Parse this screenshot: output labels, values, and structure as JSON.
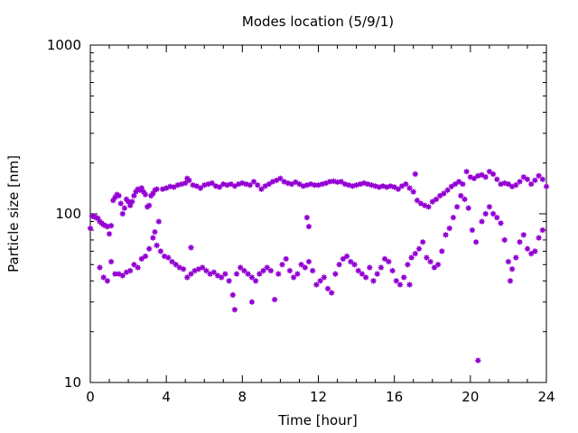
{
  "chart_data": {
    "type": "scatter",
    "title": "Modes location (5/9/1)",
    "xlabel": "Time [hour]",
    "ylabel": "Particle size [nm]",
    "xlim": [
      0,
      24
    ],
    "ylim": [
      10,
      1000
    ],
    "yscale": "log",
    "xticks": [
      "0",
      "4",
      "8",
      "12",
      "16",
      "20",
      "24"
    ],
    "yticks": [
      "10",
      "100",
      "1000"
    ],
    "grid": false,
    "marker_color": "#9400d3",
    "series": [
      {
        "points": [
          [
            0.0,
            82
          ],
          [
            0.1,
            97
          ],
          [
            0.2,
            96
          ],
          [
            0.3,
            95
          ],
          [
            0.4,
            94
          ],
          [
            0.5,
            90
          ],
          [
            0.6,
            88
          ],
          [
            0.7,
            86
          ],
          [
            0.8,
            85
          ],
          [
            0.9,
            84
          ],
          [
            1.0,
            76
          ],
          [
            1.1,
            85
          ],
          [
            1.2,
            120
          ],
          [
            1.3,
            125
          ],
          [
            1.4,
            130
          ],
          [
            1.5,
            128
          ],
          [
            1.6,
            115
          ],
          [
            1.7,
            100
          ],
          [
            1.8,
            108
          ],
          [
            1.9,
            122
          ],
          [
            2.0,
            118
          ],
          [
            2.1,
            112
          ],
          [
            2.2,
            118
          ],
          [
            2.3,
            128
          ],
          [
            2.4,
            135
          ],
          [
            2.5,
            140
          ],
          [
            2.6,
            138
          ],
          [
            2.7,
            142
          ],
          [
            2.8,
            135
          ],
          [
            2.9,
            130
          ],
          [
            3.0,
            110
          ],
          [
            3.1,
            112
          ],
          [
            3.2,
            128
          ],
          [
            3.3,
            132
          ],
          [
            3.4,
            138
          ],
          [
            3.5,
            140
          ],
          [
            3.6,
            90
          ],
          [
            3.8,
            140
          ],
          [
            4.0,
            142
          ],
          [
            4.2,
            145
          ],
          [
            4.4,
            144
          ],
          [
            4.6,
            148
          ],
          [
            4.8,
            150
          ],
          [
            5.0,
            152
          ],
          [
            5.1,
            162
          ],
          [
            5.2,
            158
          ],
          [
            5.4,
            148
          ],
          [
            5.6,
            146
          ],
          [
            5.8,
            142
          ],
          [
            6.0,
            148
          ],
          [
            6.2,
            150
          ],
          [
            6.4,
            152
          ],
          [
            6.6,
            146
          ],
          [
            6.8,
            144
          ],
          [
            7.0,
            150
          ],
          [
            7.2,
            148
          ],
          [
            7.4,
            150
          ],
          [
            7.6,
            146
          ],
          [
            7.8,
            150
          ],
          [
            8.0,
            152
          ],
          [
            8.2,
            150
          ],
          [
            8.4,
            148
          ],
          [
            8.6,
            155
          ],
          [
            8.8,
            148
          ],
          [
            9.0,
            140
          ],
          [
            9.2,
            146
          ],
          [
            9.4,
            150
          ],
          [
            9.6,
            155
          ],
          [
            9.8,
            158
          ],
          [
            10.0,
            162
          ],
          [
            10.2,
            155
          ],
          [
            10.4,
            152
          ],
          [
            10.6,
            150
          ],
          [
            10.8,
            154
          ],
          [
            11.0,
            150
          ],
          [
            11.2,
            146
          ],
          [
            11.4,
            148
          ],
          [
            11.6,
            150
          ],
          [
            11.8,
            148
          ],
          [
            12.0,
            148
          ],
          [
            12.2,
            150
          ],
          [
            12.4,
            152
          ],
          [
            12.6,
            155
          ],
          [
            12.8,
            156
          ],
          [
            13.0,
            154
          ],
          [
            13.2,
            155
          ],
          [
            13.4,
            150
          ],
          [
            13.6,
            148
          ],
          [
            13.8,
            146
          ],
          [
            14.0,
            148
          ],
          [
            14.2,
            150
          ],
          [
            14.4,
            152
          ],
          [
            14.6,
            150
          ],
          [
            14.8,
            148
          ],
          [
            15.0,
            146
          ],
          [
            15.2,
            144
          ],
          [
            15.4,
            146
          ],
          [
            15.6,
            144
          ],
          [
            15.8,
            146
          ],
          [
            16.0,
            144
          ],
          [
            16.2,
            140
          ],
          [
            16.4,
            146
          ],
          [
            16.6,
            150
          ],
          [
            16.8,
            142
          ],
          [
            17.0,
            135
          ],
          [
            17.1,
            172
          ],
          [
            17.2,
            120
          ],
          [
            17.4,
            115
          ],
          [
            17.6,
            112
          ],
          [
            17.8,
            110
          ],
          [
            18.0,
            118
          ],
          [
            18.2,
            122
          ],
          [
            18.4,
            128
          ],
          [
            18.6,
            132
          ],
          [
            18.8,
            138
          ],
          [
            19.0,
            145
          ],
          [
            19.2,
            150
          ],
          [
            19.4,
            155
          ],
          [
            19.6,
            150
          ],
          [
            19.8,
            178
          ],
          [
            20.0,
            165
          ],
          [
            20.2,
            162
          ],
          [
            20.4,
            168
          ],
          [
            20.6,
            170
          ],
          [
            20.8,
            165
          ],
          [
            21.0,
            178
          ],
          [
            21.2,
            172
          ],
          [
            21.4,
            160
          ],
          [
            21.6,
            150
          ],
          [
            21.8,
            152
          ],
          [
            22.0,
            150
          ],
          [
            22.2,
            145
          ],
          [
            22.4,
            148
          ],
          [
            22.6,
            155
          ],
          [
            22.8,
            165
          ],
          [
            23.0,
            160
          ],
          [
            23.2,
            150
          ],
          [
            23.4,
            158
          ],
          [
            23.6,
            168
          ],
          [
            23.8,
            160
          ],
          [
            24.0,
            145
          ],
          [
            0.5,
            48
          ],
          [
            0.7,
            42
          ],
          [
            0.9,
            40
          ],
          [
            1.1,
            52
          ],
          [
            1.3,
            44
          ],
          [
            1.5,
            44
          ],
          [
            1.7,
            43
          ],
          [
            1.9,
            45
          ],
          [
            2.1,
            46
          ],
          [
            2.3,
            50
          ],
          [
            2.5,
            48
          ],
          [
            2.7,
            54
          ],
          [
            2.9,
            56
          ],
          [
            3.1,
            62
          ],
          [
            3.3,
            72
          ],
          [
            3.5,
            65
          ],
          [
            3.7,
            60
          ],
          [
            3.9,
            56
          ],
          [
            4.1,
            55
          ],
          [
            4.3,
            52
          ],
          [
            4.5,
            50
          ],
          [
            4.7,
            48
          ],
          [
            4.9,
            47
          ],
          [
            5.1,
            42
          ],
          [
            5.3,
            44
          ],
          [
            5.5,
            46
          ],
          [
            5.7,
            47
          ],
          [
            5.9,
            48
          ],
          [
            6.1,
            46
          ],
          [
            6.3,
            44
          ],
          [
            6.5,
            45
          ],
          [
            6.7,
            43
          ],
          [
            6.9,
            42
          ],
          [
            7.1,
            44
          ],
          [
            7.3,
            40
          ],
          [
            7.5,
            33
          ],
          [
            7.6,
            27
          ],
          [
            7.7,
            44
          ],
          [
            7.9,
            48
          ],
          [
            8.1,
            46
          ],
          [
            8.3,
            44
          ],
          [
            8.5,
            42
          ],
          [
            8.7,
            40
          ],
          [
            8.9,
            44
          ],
          [
            9.1,
            46
          ],
          [
            9.3,
            48
          ],
          [
            9.5,
            46
          ],
          [
            9.7,
            31
          ],
          [
            9.9,
            44
          ],
          [
            10.1,
            50
          ],
          [
            10.3,
            54
          ],
          [
            10.5,
            46
          ],
          [
            10.7,
            42
          ],
          [
            10.9,
            44
          ],
          [
            11.1,
            50
          ],
          [
            11.3,
            48
          ],
          [
            11.5,
            52
          ],
          [
            11.7,
            46
          ],
          [
            11.9,
            38
          ],
          [
            12.1,
            40
          ],
          [
            12.3,
            42
          ],
          [
            12.5,
            36
          ],
          [
            12.7,
            34
          ],
          [
            12.9,
            44
          ],
          [
            13.1,
            50
          ],
          [
            13.3,
            54
          ],
          [
            13.5,
            56
          ],
          [
            13.7,
            52
          ],
          [
            13.9,
            50
          ],
          [
            14.1,
            46
          ],
          [
            14.3,
            44
          ],
          [
            14.5,
            42
          ],
          [
            14.7,
            48
          ],
          [
            14.9,
            40
          ],
          [
            15.1,
            44
          ],
          [
            15.3,
            48
          ],
          [
            15.5,
            54
          ],
          [
            15.7,
            52
          ],
          [
            15.9,
            46
          ],
          [
            16.1,
            40
          ],
          [
            16.3,
            38
          ],
          [
            16.5,
            42
          ],
          [
            16.7,
            50
          ],
          [
            16.9,
            55
          ],
          [
            17.1,
            58
          ],
          [
            17.3,
            62
          ],
          [
            17.5,
            68
          ],
          [
            17.7,
            55
          ],
          [
            17.9,
            52
          ],
          [
            18.1,
            48
          ],
          [
            18.3,
            50
          ],
          [
            18.5,
            60
          ],
          [
            18.7,
            75
          ],
          [
            18.9,
            82
          ],
          [
            19.1,
            95
          ],
          [
            19.3,
            110
          ],
          [
            19.5,
            128
          ],
          [
            19.7,
            122
          ],
          [
            19.9,
            108
          ],
          [
            20.1,
            80
          ],
          [
            20.3,
            68
          ],
          [
            20.4,
            13.5
          ],
          [
            20.6,
            90
          ],
          [
            20.8,
            100
          ],
          [
            21.0,
            110
          ],
          [
            21.2,
            100
          ],
          [
            21.4,
            95
          ],
          [
            21.6,
            88
          ],
          [
            21.8,
            70
          ],
          [
            22.0,
            52
          ],
          [
            22.1,
            40
          ],
          [
            22.2,
            47
          ],
          [
            22.4,
            55
          ],
          [
            22.6,
            68
          ],
          [
            22.8,
            75
          ],
          [
            23.0,
            62
          ],
          [
            23.2,
            58
          ],
          [
            23.4,
            60
          ],
          [
            23.6,
            72
          ],
          [
            23.8,
            80
          ],
          [
            3.4,
            78
          ],
          [
            5.3,
            63
          ],
          [
            11.4,
            95
          ],
          [
            11.5,
            84
          ],
          [
            8.5,
            30
          ],
          [
            16.8,
            38
          ]
        ]
      }
    ]
  }
}
